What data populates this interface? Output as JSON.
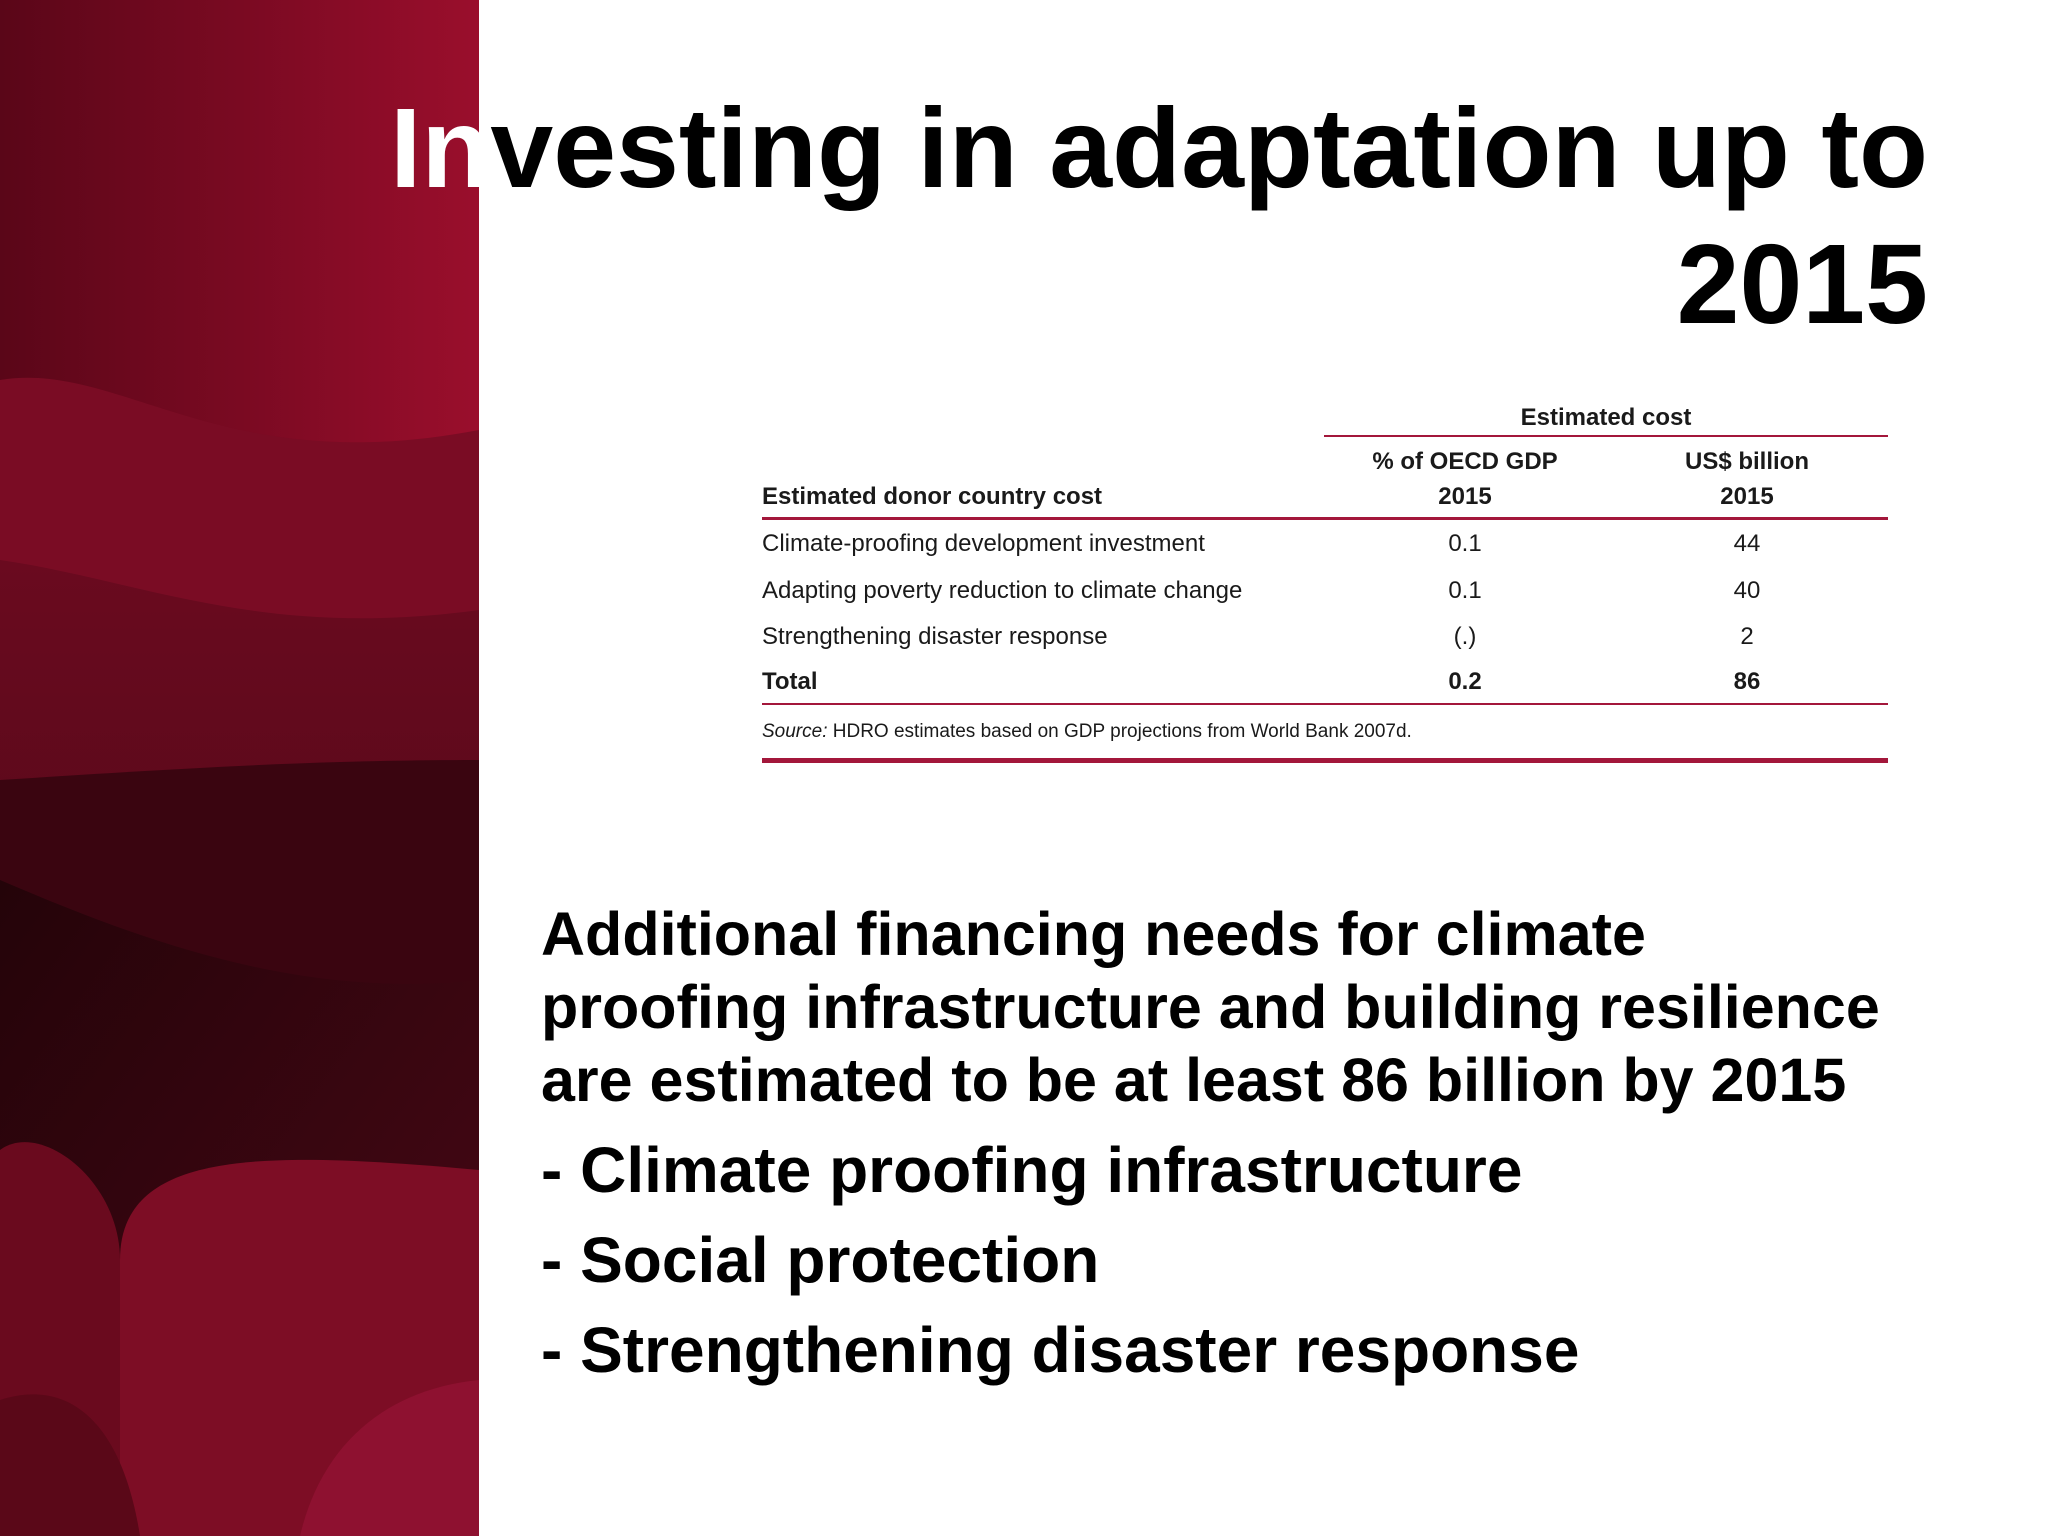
{
  "slide": {
    "title_accent": "In",
    "title_rest": "vesting in adaptation up to 2015",
    "colors": {
      "accent": "#a3173b",
      "panel_dark": "#2a0610",
      "panel_mid": "#6d0a1f",
      "panel_light": "#96152e"
    }
  },
  "table": {
    "group_header": "Estimated cost",
    "columns": {
      "label": "Estimated donor country cost",
      "pct": "% of OECD GDP",
      "pct_year": "2015",
      "usd": "US$ billion",
      "usd_year": "2015"
    },
    "rows": [
      {
        "label": "Climate-proofing development investment",
        "pct": "0.1",
        "usd": "44"
      },
      {
        "label": "Adapting poverty reduction to climate change",
        "pct": "0.1",
        "usd": "40"
      },
      {
        "label": "Strengthening disaster response",
        "pct": "(.)",
        "usd": "2"
      }
    ],
    "total": {
      "label": "Total",
      "pct": "0.2",
      "usd": "86"
    },
    "source_label": "Source:",
    "source_text": "HDRO estimates based on GDP projections from World Bank 2007d."
  },
  "body": {
    "paragraph_lines": [
      "Additional financing needs for climate",
      "proofing infrastructure and building resilience",
      "are estimated to be at least 86 billion by 2015"
    ],
    "bullets": [
      "- Climate proofing infrastructure",
      "- Social protection",
      "- Strengthening disaster response"
    ]
  }
}
